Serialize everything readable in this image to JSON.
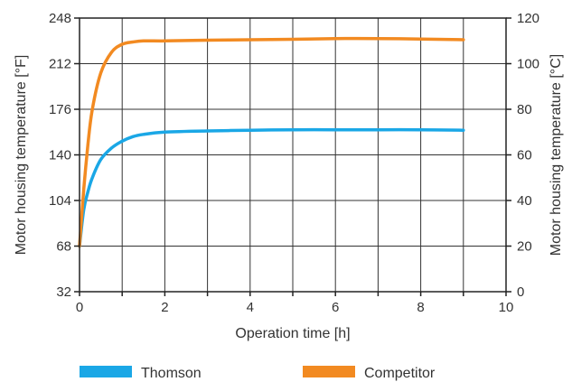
{
  "chart_data": {
    "type": "line",
    "title": "",
    "xlabel": "Operation time [h]",
    "ylabel_left": "Motor housing temperature [°F]",
    "ylabel_right": "Motor housing temperature [°C]",
    "xlim": [
      0,
      10
    ],
    "ylim_left": [
      32,
      248
    ],
    "ylim_right": [
      0,
      120
    ],
    "x_ticks": [
      0,
      2,
      4,
      6,
      8,
      10
    ],
    "y_ticks_left": [
      32,
      68,
      104,
      140,
      176,
      212,
      248
    ],
    "y_ticks_right": [
      0,
      20,
      40,
      60,
      80,
      100,
      120
    ],
    "grid": true,
    "legend_position": "bottom",
    "series": [
      {
        "name": "Thomson",
        "color": "#1aa7e6",
        "x": [
          0,
          0.1,
          0.2,
          0.3,
          0.5,
          0.75,
          1.0,
          1.25,
          1.5,
          2.0,
          3.0,
          4.0,
          5.0,
          6.0,
          7.0,
          8.0,
          9.0
        ],
        "y": [
          20,
          36,
          44,
          50,
          58,
          63,
          66,
          68,
          69,
          70,
          70.5,
          70.8,
          71,
          71,
          71,
          71,
          70.8
        ]
      },
      {
        "name": "Competitor",
        "color": "#f28a21",
        "x": [
          0,
          0.1,
          0.2,
          0.3,
          0.5,
          0.75,
          1.0,
          1.25,
          1.5,
          2.0,
          3.0,
          4.0,
          5.0,
          6.0,
          7.0,
          8.0,
          9.0
        ],
        "y": [
          20,
          45,
          65,
          80,
          96,
          105,
          108.5,
          109.5,
          110,
          110,
          110.3,
          110.5,
          110.7,
          111,
          111,
          110.8,
          110.5
        ]
      }
    ]
  }
}
